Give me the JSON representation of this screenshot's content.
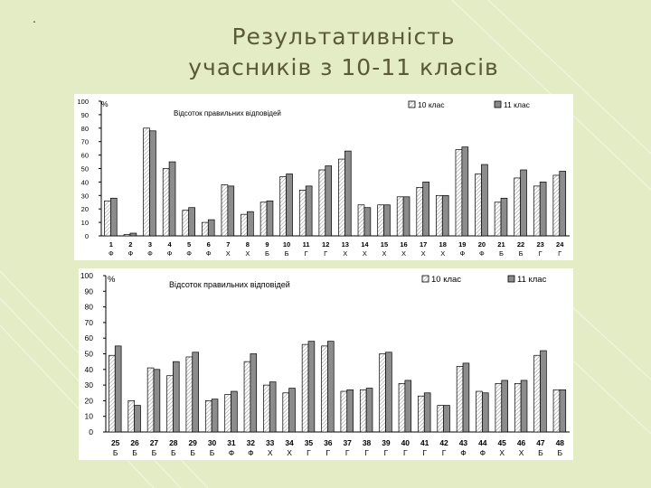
{
  "slide": {
    "title_line1": "Результативність",
    "title_line2": "учасників з 10-11 класів",
    "bullet": "."
  },
  "colors": {
    "background": "#e3ecc4",
    "series_10": "#ffffff",
    "series_11": "#8c8c8c",
    "title": "#5a5a36"
  },
  "chart_data": [
    {
      "type": "bar",
      "title": "Відсоток правильних відповідей",
      "ylabel": "%",
      "ylim": [
        0,
        100
      ],
      "yticks": [
        0,
        10,
        20,
        30,
        40,
        50,
        60,
        70,
        80,
        90,
        100
      ],
      "grid": false,
      "legend": "top-right",
      "categories": [
        "1",
        "2",
        "3",
        "4",
        "5",
        "6",
        "7",
        "8",
        "9",
        "10",
        "11",
        "12",
        "13",
        "14",
        "15",
        "16",
        "17",
        "18",
        "19",
        "20",
        "21",
        "22",
        "23",
        "24"
      ],
      "subcategories": [
        "Ф",
        "Ф",
        "Ф",
        "Ф",
        "Ф",
        "Ф",
        "Х",
        "Х",
        "Б",
        "Б",
        "Г",
        "Г",
        "Х",
        "Х",
        "Х",
        "Х",
        "Х",
        "Х",
        "Ф",
        "Ф",
        "Б",
        "Б",
        "Г",
        "Г"
      ],
      "series": [
        {
          "name": "10 клас",
          "values": [
            26,
            1,
            80,
            50,
            19,
            10,
            38,
            16,
            25,
            44,
            34,
            49,
            57,
            23,
            23,
            29,
            36,
            30,
            64,
            46,
            25,
            43,
            37,
            45
          ]
        },
        {
          "name": "11 клас",
          "values": [
            28,
            2,
            78,
            55,
            21,
            12,
            37,
            18,
            26,
            46,
            37,
            52,
            63,
            21,
            23,
            29,
            40,
            30,
            66,
            53,
            28,
            49,
            40,
            48
          ]
        }
      ]
    },
    {
      "type": "bar",
      "title": "Відсоток правильних відповідей",
      "ylabel": "%",
      "ylim": [
        0,
        100
      ],
      "yticks": [
        0,
        10,
        20,
        30,
        40,
        50,
        60,
        70,
        80,
        90,
        100
      ],
      "grid": false,
      "legend": "top-right",
      "categories": [
        "25",
        "26",
        "27",
        "28",
        "29",
        "30",
        "31",
        "32",
        "33",
        "34",
        "35",
        "36",
        "37",
        "38",
        "39",
        "40",
        "41",
        "42",
        "43",
        "44",
        "45",
        "46",
        "47",
        "48"
      ],
      "subcategories": [
        "Б",
        "Б",
        "Б",
        "Б",
        "Б",
        "Б",
        "Ф",
        "Ф",
        "Х",
        "Х",
        "Г",
        "Г",
        "Г",
        "Г",
        "Г",
        "Г",
        "Г",
        "Г",
        "Ф",
        "Ф",
        "Х",
        "Х",
        "Б",
        "Б"
      ],
      "series": [
        {
          "name": "10 клас",
          "values": [
            49,
            20,
            41,
            36,
            48,
            20,
            24,
            45,
            30,
            25,
            56,
            55,
            26,
            27,
            50,
            31,
            23,
            17,
            42,
            26,
            31,
            31,
            49,
            27
          ]
        },
        {
          "name": "11 клас",
          "values": [
            55,
            17,
            40,
            45,
            51,
            21,
            26,
            50,
            32,
            28,
            58,
            58,
            27,
            28,
            51,
            33,
            25,
            17,
            44,
            25,
            33,
            33,
            52,
            27
          ]
        }
      ]
    }
  ]
}
